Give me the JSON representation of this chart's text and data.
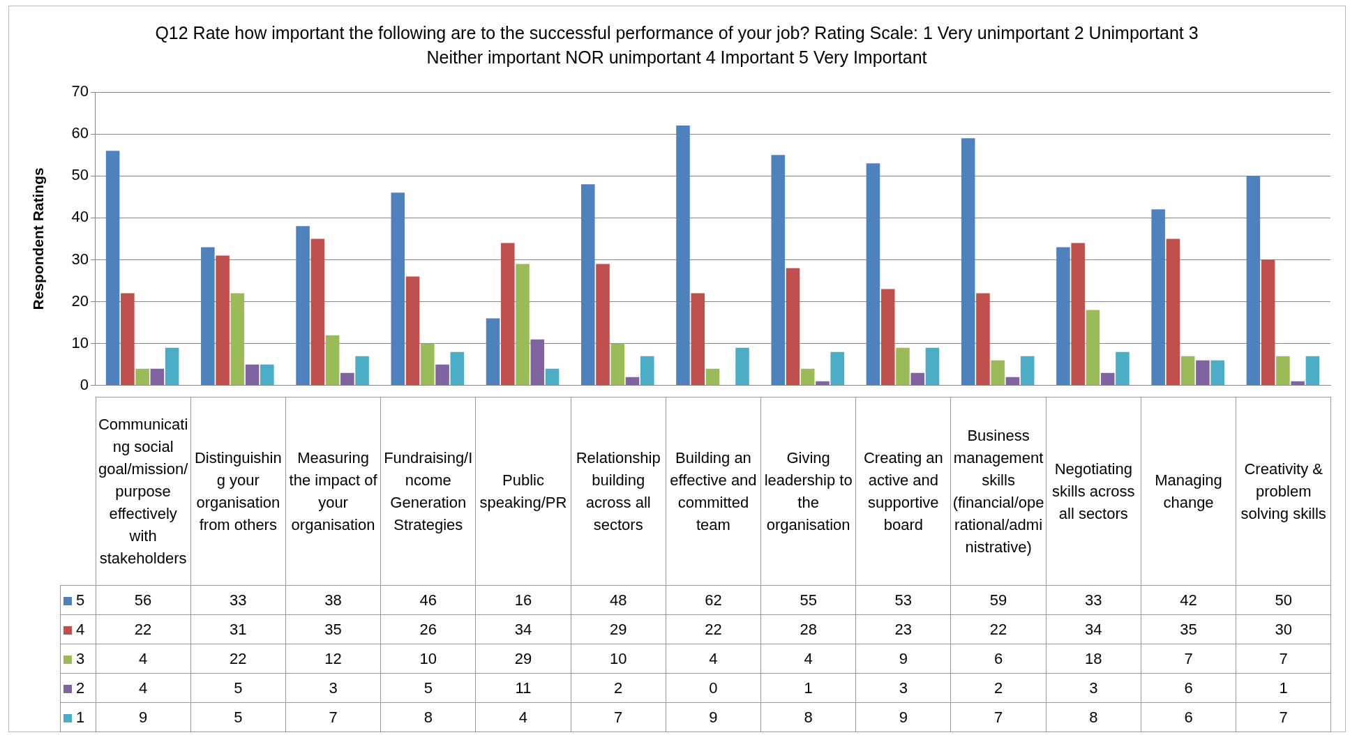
{
  "chart_data": {
    "type": "bar",
    "title": "Q12 Rate how important the following are to the successful performance of your job?  Rating Scale: 1 Very unimportant 2 Unimportant 3 Neither important NOR unimportant 4 Important 5 Very Important",
    "ylabel": "Respondent Ratings",
    "categories": [
      "Communicating social goal/mission/purpose effectively with stakeholders",
      "Distinguishing your organisation from others",
      "Measuring the impact of your organisation",
      "Fundraising/Income Generation Strategies",
      "Public speaking/PR",
      "Relationship building across all sectors",
      "Building an effective and committed team",
      "Giving leadership to the organisation",
      "Creating an active and supportive board",
      "Business management skills (financial/operational/administrative)",
      "Negotiating skills across all sectors",
      "Managing change",
      "Creativity & problem solving skills"
    ],
    "series": [
      {
        "name": "5",
        "color": "#4f81bd",
        "values": [
          56,
          33,
          38,
          46,
          16,
          48,
          62,
          55,
          53,
          59,
          33,
          42,
          50
        ]
      },
      {
        "name": "4",
        "color": "#c0504d",
        "values": [
          22,
          31,
          35,
          26,
          34,
          29,
          22,
          28,
          23,
          22,
          34,
          35,
          30
        ]
      },
      {
        "name": "3",
        "color": "#9bbb59",
        "values": [
          4,
          22,
          12,
          10,
          29,
          10,
          4,
          4,
          9,
          6,
          18,
          7,
          7
        ]
      },
      {
        "name": "2",
        "color": "#8064a2",
        "values": [
          4,
          5,
          3,
          5,
          11,
          2,
          0,
          1,
          3,
          2,
          3,
          6,
          1
        ]
      },
      {
        "name": "1",
        "color": "#4bacc6",
        "values": [
          9,
          5,
          7,
          8,
          4,
          7,
          9,
          8,
          9,
          7,
          8,
          6,
          7
        ]
      }
    ],
    "ylim": [
      0,
      70
    ],
    "yticks": [
      0,
      10,
      20,
      30,
      40,
      50,
      60,
      70
    ],
    "grid": "y",
    "legend": "left",
    "data_labels": true
  }
}
